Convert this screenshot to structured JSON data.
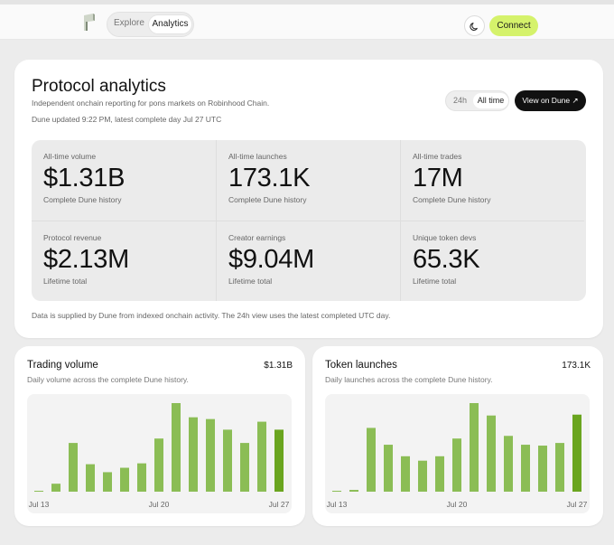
{
  "nav": {
    "explore": "Explore",
    "analytics": "Analytics",
    "connect": "Connect",
    "logo_icon": "brand-logo-icon",
    "theme_icon": "moon-icon"
  },
  "colors": {
    "accent": "#d5f26b",
    "bar": "#8bbd55",
    "bar_latest": "#6aa51f"
  },
  "hero": {
    "title": "Protocol analytics",
    "subtitle": "Independent onchain reporting for pons markets on Robinhood Chain.",
    "updated": "Dune updated 9:22 PM, latest complete day Jul 27 UTC",
    "range_options": [
      "24h",
      "All time"
    ],
    "range_selected": "All time",
    "view_button": "View on Dune ↗",
    "footnote": "Data is supplied by Dune from indexed onchain activity. The 24h view uses the latest completed UTC day.",
    "stats": [
      {
        "label": "All-time volume",
        "value": "$1.31B",
        "note": "Complete Dune history"
      },
      {
        "label": "All-time launches",
        "value": "173.1K",
        "note": "Complete Dune history"
      },
      {
        "label": "All-time trades",
        "value": "17M",
        "note": "Complete Dune history"
      },
      {
        "label": "Protocol revenue",
        "value": "$2.13M",
        "note": "Lifetime total"
      },
      {
        "label": "Creator earnings",
        "value": "$9.04M",
        "note": "Lifetime total"
      },
      {
        "label": "Unique token devs",
        "value": "65.3K",
        "note": "Lifetime total"
      }
    ]
  },
  "charts": {
    "volume": {
      "title": "Trading volume",
      "total": "$1.31B",
      "subtitle": "Daily volume across the complete Dune history."
    },
    "launches": {
      "title": "Token launches",
      "total": "173.1K",
      "subtitle": "Daily launches across the complete Dune history."
    }
  },
  "chart_data": [
    {
      "type": "bar",
      "title": "Trading volume",
      "categories": [
        "Jul 13",
        "Jul 14",
        "Jul 15",
        "Jul 16",
        "Jul 17",
        "Jul 18",
        "Jul 19",
        "Jul 20",
        "Jul 21",
        "Jul 22",
        "Jul 23",
        "Jul 24",
        "Jul 25",
        "Jul 26",
        "Jul 27"
      ],
      "x_tick_labels": [
        "Jul 13",
        "Jul 20",
        "Jul 27"
      ],
      "values": [
        1,
        9,
        55,
        31,
        22,
        27,
        32,
        60,
        100,
        84,
        82,
        70,
        55,
        79,
        70
      ],
      "ylim": [
        0,
        100
      ],
      "latest_highlighted": true
    },
    {
      "type": "bar",
      "title": "Token launches",
      "categories": [
        "Jul 13",
        "Jul 14",
        "Jul 15",
        "Jul 16",
        "Jul 17",
        "Jul 18",
        "Jul 19",
        "Jul 20",
        "Jul 21",
        "Jul 22",
        "Jul 23",
        "Jul 24",
        "Jul 25",
        "Jul 26",
        "Jul 27"
      ],
      "x_tick_labels": [
        "Jul 13",
        "Jul 20",
        "Jul 27"
      ],
      "values": [
        1,
        2,
        72,
        53,
        40,
        35,
        40,
        60,
        100,
        86,
        63,
        53,
        52,
        55,
        87
      ],
      "ylim": [
        0,
        100
      ],
      "latest_highlighted": true
    }
  ]
}
